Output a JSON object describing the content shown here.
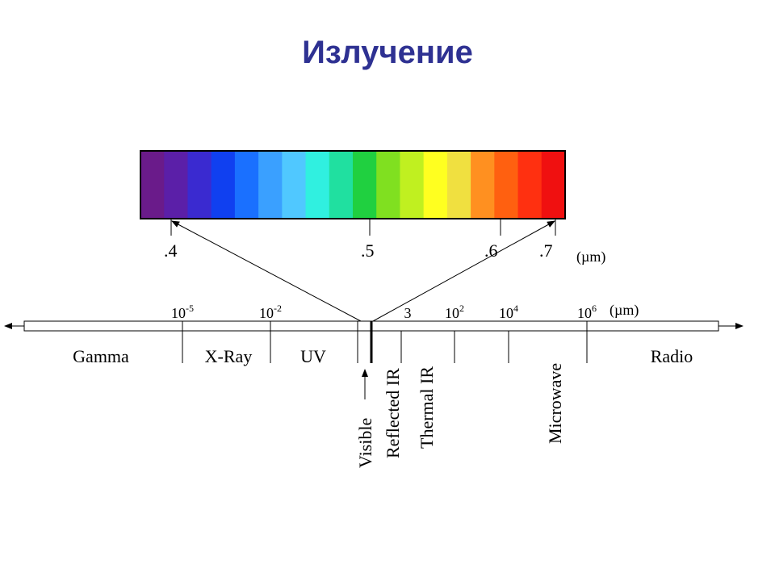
{
  "title": "Излучение",
  "visible_scale": {
    "ticks": [
      ".4",
      ".5",
      ".6",
      ".7"
    ],
    "unit": "(µm)"
  },
  "spectrum_scale": {
    "ticks": [
      {
        "base": "10",
        "exp": "-5"
      },
      {
        "base": "10",
        "exp": "-2"
      },
      {
        "base": "3",
        "exp": ""
      },
      {
        "base": "10",
        "exp": "2"
      },
      {
        "base": "10",
        "exp": "4"
      },
      {
        "base": "10",
        "exp": "6"
      }
    ],
    "unit": "(µm)"
  },
  "bands": [
    "Gamma",
    "X-Ray",
    "UV",
    "Radio"
  ],
  "vertical_bands": [
    "Visible",
    "Reflected IR",
    "Thermal IR",
    "Microwave"
  ]
}
